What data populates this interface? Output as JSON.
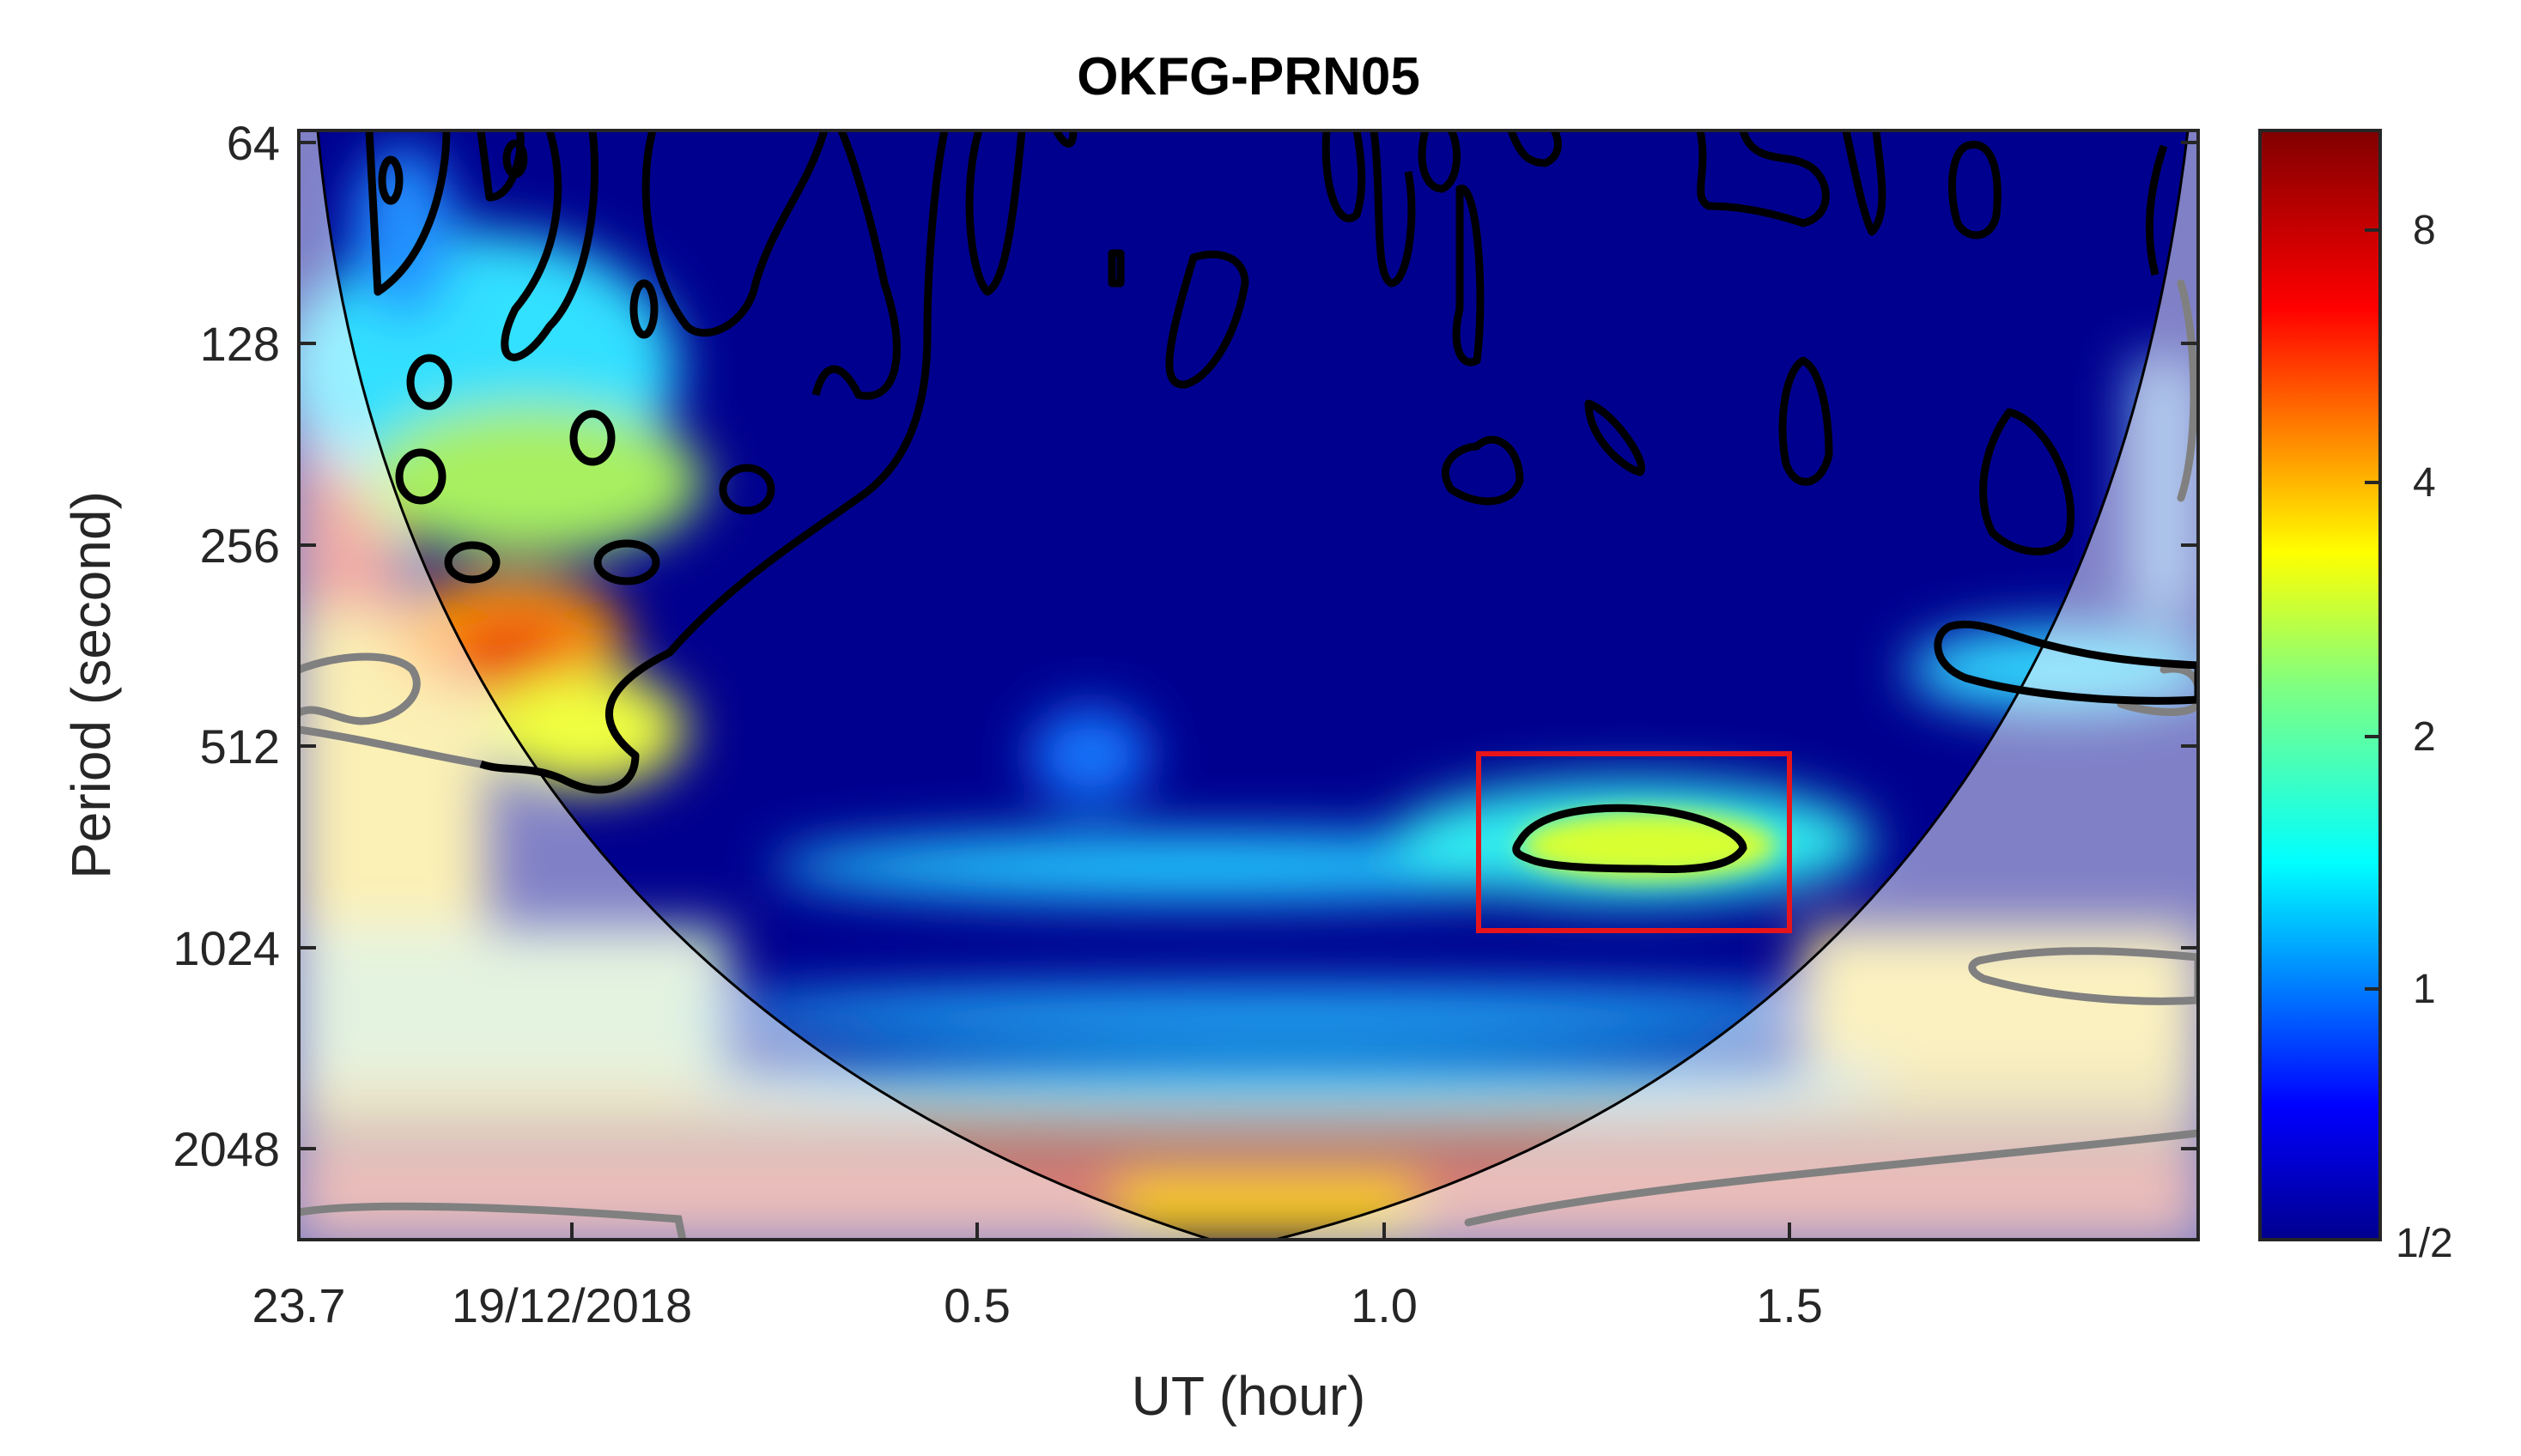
{
  "chart_data": {
    "type": "heatmap",
    "title": "OKFG-PRN05",
    "xlabel": "UT (hour)",
    "ylabel": "Period (second)",
    "x_ticks": [
      "23.7",
      "19/12/2018",
      "0.5",
      "1.0",
      "1.5"
    ],
    "y_ticks": [
      "64",
      "128",
      "256",
      "512",
      "1024",
      "2048"
    ],
    "y_scale": "log2",
    "ylim": [
      64,
      3000
    ],
    "colorbar": {
      "colormap": "jet",
      "ticks": [
        "8",
        "4",
        "2",
        "1",
        "1/2"
      ],
      "range": [
        0.5,
        10
      ]
    },
    "highlight_box": {
      "x_range": [
        1.12,
        1.5
      ],
      "period_range": [
        512,
        1024
      ],
      "color": "#e8141b"
    },
    "cone_of_influence": true,
    "significance_contours": true,
    "colors": {
      "background_power": "#00008f",
      "contour_significant": "#000000",
      "contour_outside_coi": "#808080",
      "box": "#e8141b"
    }
  }
}
